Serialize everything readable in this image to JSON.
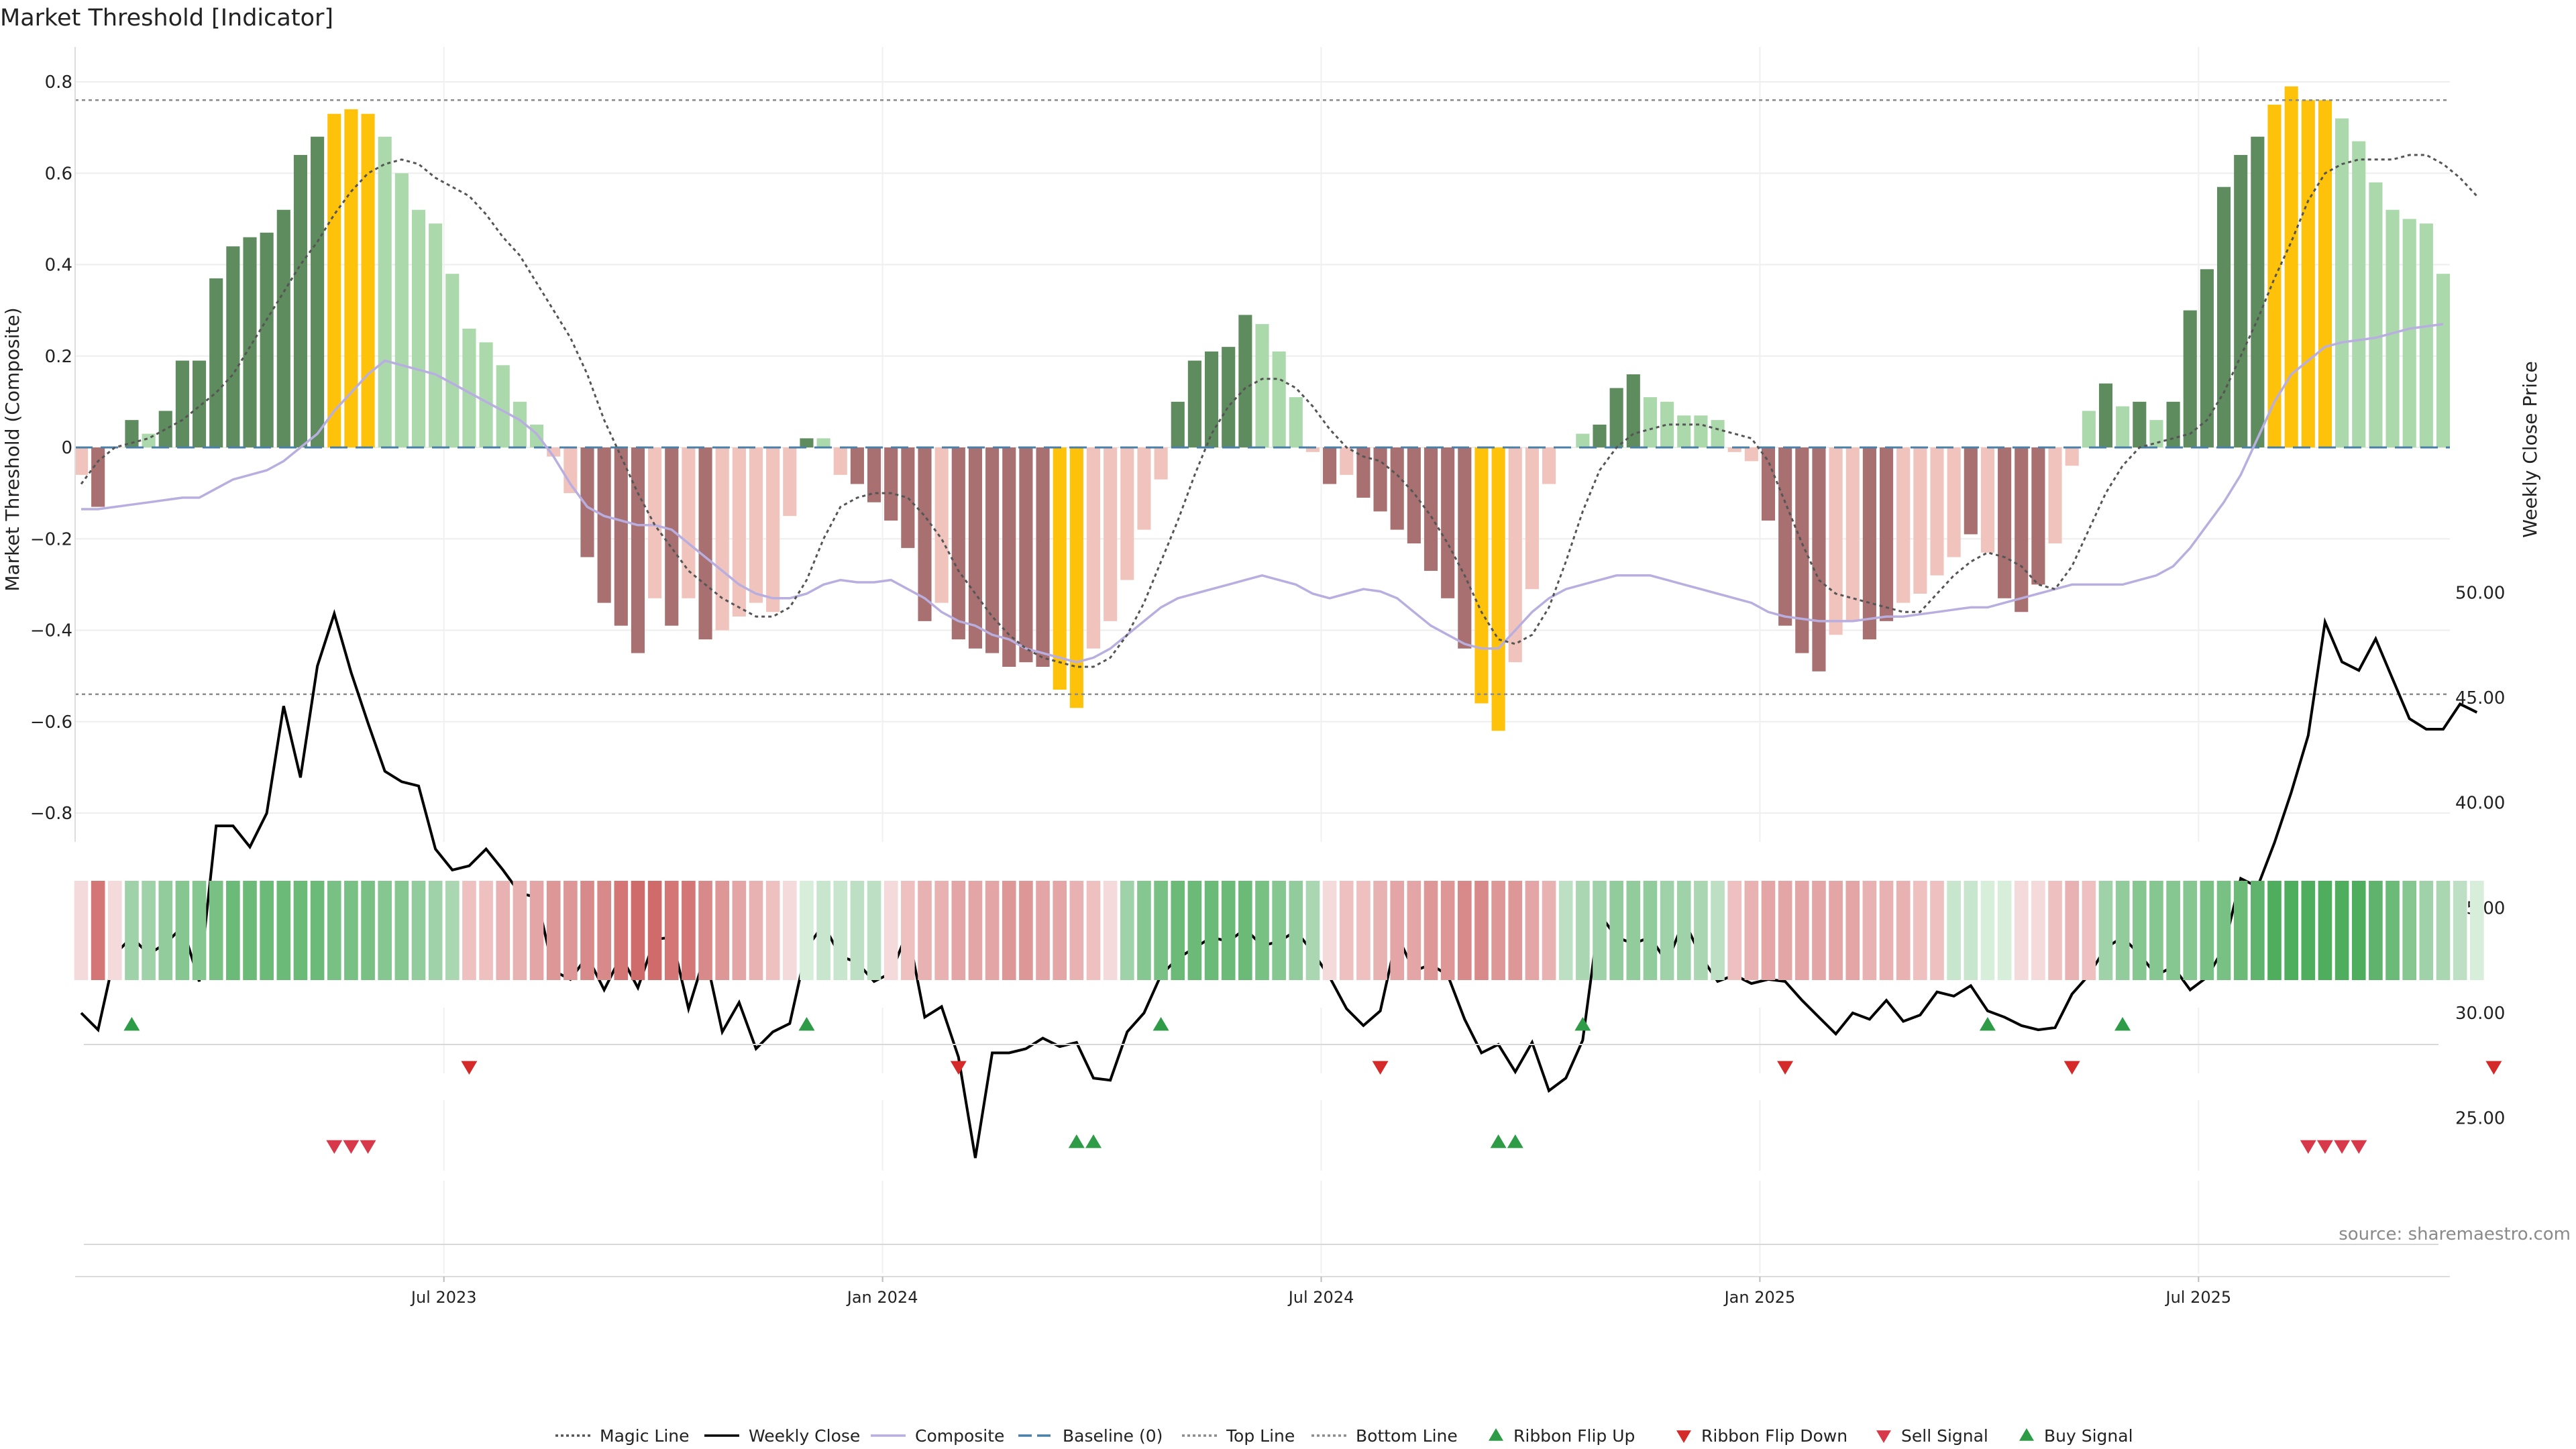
{
  "chart_data": {
    "type": "bar+line",
    "title": "Market Threshold [Indicator]",
    "ylabel": "Market Threshold (Composite)",
    "y2label": "Weekly Close Price",
    "source": "source: sharemaestro.com",
    "ylim": [
      -0.85,
      0.85
    ],
    "y2lim": [
      22.3,
      51.2
    ],
    "y_ticks": [
      0.8,
      0.6,
      0.4,
      0.2,
      0,
      -0.2,
      -0.4,
      -0.6,
      -0.8
    ],
    "y_tick_labels": [
      "0.8",
      "0.6",
      "0.4",
      "0.2",
      "0",
      "−0.2",
      "−0.4",
      "−0.6",
      "−0.8"
    ],
    "y2_ticks": [
      50,
      45,
      40,
      35,
      30,
      25
    ],
    "y2_tick_labels": [
      "50.00",
      "45.00",
      "40.00",
      "35.00",
      "30.00",
      "25.00"
    ],
    "x_ticks": [
      {
        "label": "Jul 2023",
        "week": 21.5
      },
      {
        "label": "Jan 2024",
        "week": 47.5
      },
      {
        "label": "Jul 2024",
        "week": 73.5
      },
      {
        "label": "Jan 2025",
        "week": 99.5
      },
      {
        "label": "Jul 2025",
        "week": 125.5
      }
    ],
    "top_line": 0.76,
    "bottom_line": -0.54,
    "composite_values": [
      -0.06,
      -0.13,
      0,
      0.06,
      0.03,
      0.08,
      0.19,
      0.19,
      0.37,
      0.44,
      0.46,
      0.47,
      0.52,
      0.64,
      0.68,
      0.73,
      0.74,
      0.73,
      0.68,
      0.6,
      0.52,
      0.49,
      0.38,
      0.26,
      0.23,
      0.18,
      0.1,
      0.05,
      -0.02,
      -0.1,
      -0.24,
      -0.34,
      -0.39,
      -0.45,
      -0.33,
      -0.39,
      -0.33,
      -0.42,
      -0.4,
      -0.37,
      -0.34,
      -0.36,
      -0.15,
      0.02,
      0.02,
      -0.06,
      -0.08,
      -0.12,
      -0.16,
      -0.22,
      -0.38,
      -0.34,
      -0.42,
      -0.44,
      -0.45,
      -0.48,
      -0.47,
      -0.48,
      -0.53,
      -0.57,
      -0.44,
      -0.38,
      -0.29,
      -0.18,
      -0.07,
      0.1,
      0.19,
      0.21,
      0.22,
      0.29,
      0.27,
      0.21,
      0.11,
      -0.01,
      -0.08,
      -0.06,
      -0.11,
      -0.14,
      -0.18,
      -0.21,
      -0.27,
      -0.33,
      -0.44,
      -0.56,
      -0.62,
      -0.47,
      -0.31,
      -0.08,
      0,
      0.03,
      0.05,
      0.13,
      0.16,
      0.11,
      0.1,
      0.07,
      0.07,
      0.06,
      -0.01,
      -0.03,
      -0.16,
      -0.39,
      -0.45,
      -0.49,
      -0.41,
      -0.38,
      -0.42,
      -0.38,
      -0.34,
      -0.32,
      -0.28,
      -0.24,
      -0.19,
      -0.23,
      -0.33,
      -0.36,
      -0.3,
      -0.21,
      -0.04,
      0.08,
      0.14,
      0.09,
      0.1,
      0.06,
      0.1,
      0.3,
      0.39,
      0.57,
      0.64,
      0.68,
      0.75,
      0.79,
      0.76,
      0.76,
      0.72,
      0.67,
      0.58,
      0.52,
      0.5,
      0.49,
      0.38
    ],
    "bar_colors": [
      "#f0c4bd",
      "#a87070",
      "#f0c4bd",
      "#5f8c5f",
      "#acd9ac",
      "#5f8c5f",
      "#5f8c5f",
      "#5f8c5f",
      "#5f8c5f",
      "#5f8c5f",
      "#5f8c5f",
      "#5f8c5f",
      "#5f8c5f",
      "#5f8c5f",
      "#5f8c5f",
      "#ffc20a",
      "#ffc20a",
      "#ffc20a",
      "#acd9ac",
      "#acd9ac",
      "#acd9ac",
      "#acd9ac",
      "#acd9ac",
      "#acd9ac",
      "#acd9ac",
      "#acd9ac",
      "#acd9ac",
      "#acd9ac",
      "#f0c4bd",
      "#f0c4bd",
      "#a87070",
      "#a87070",
      "#a87070",
      "#a87070",
      "#f0c4bd",
      "#a87070",
      "#f0c4bd",
      "#a87070",
      "#f0c4bd",
      "#f0c4bd",
      "#f0c4bd",
      "#f0c4bd",
      "#f0c4bd",
      "#5f8c5f",
      "#acd9ac",
      "#f0c4bd",
      "#a87070",
      "#a87070",
      "#a87070",
      "#a87070",
      "#a87070",
      "#f0c4bd",
      "#a87070",
      "#a87070",
      "#a87070",
      "#a87070",
      "#a87070",
      "#a87070",
      "#ffc20a",
      "#ffc20a",
      "#f0c4bd",
      "#f0c4bd",
      "#f0c4bd",
      "#f0c4bd",
      "#f0c4bd",
      "#5f8c5f",
      "#5f8c5f",
      "#5f8c5f",
      "#5f8c5f",
      "#5f8c5f",
      "#acd9ac",
      "#acd9ac",
      "#acd9ac",
      "#f0c4bd",
      "#a87070",
      "#f0c4bd",
      "#a87070",
      "#a87070",
      "#a87070",
      "#a87070",
      "#a87070",
      "#a87070",
      "#a87070",
      "#ffc20a",
      "#ffc20a",
      "#f0c4bd",
      "#f0c4bd",
      "#f0c4bd",
      "#f0c4bd",
      "#acd9ac",
      "#5f8c5f",
      "#5f8c5f",
      "#5f8c5f",
      "#acd9ac",
      "#acd9ac",
      "#acd9ac",
      "#acd9ac",
      "#acd9ac",
      "#f0c4bd",
      "#f0c4bd",
      "#a87070",
      "#a87070",
      "#a87070",
      "#a87070",
      "#f0c4bd",
      "#f0c4bd",
      "#a87070",
      "#a87070",
      "#f0c4bd",
      "#f0c4bd",
      "#f0c4bd",
      "#f0c4bd",
      "#a87070",
      "#f0c4bd",
      "#a87070",
      "#a87070",
      "#a87070",
      "#f0c4bd",
      "#f0c4bd",
      "#acd9ac",
      "#5f8c5f",
      "#acd9ac",
      "#5f8c5f",
      "#acd9ac",
      "#5f8c5f",
      "#5f8c5f",
      "#5f8c5f",
      "#5f8c5f",
      "#5f8c5f",
      "#5f8c5f",
      "#ffc20a",
      "#ffc20a",
      "#ffc20a",
      "#ffc20a",
      "#acd9ac",
      "#acd9ac",
      "#acd9ac",
      "#acd9ac",
      "#acd9ac",
      "#acd9ac",
      "#acd9ac"
    ],
    "weekly_close": [
      30.0,
      29.2,
      32.8,
      33.6,
      32.8,
      33.3,
      34.1,
      31.5,
      38.9,
      38.9,
      37.9,
      39.5,
      44.6,
      41.2,
      46.5,
      49.0,
      46.2,
      43.8,
      41.5,
      41.0,
      40.8,
      37.8,
      36.8,
      37.0,
      37.8,
      36.8,
      35.7,
      35.5,
      32.0,
      31.6,
      32.7,
      31.1,
      32.7,
      31.2,
      33.5,
      33.6,
      30.2,
      32.8,
      29.1,
      30.5,
      28.3,
      29.1,
      29.5,
      33.1,
      34.2,
      32.7,
      32.4,
      31.5,
      31.9,
      33.9,
      29.8,
      30.3,
      27.9,
      23.1,
      28.1,
      28.1,
      28.3,
      28.8,
      28.4,
      28.6,
      26.9,
      26.8,
      29.1,
      30.0,
      31.8,
      32.6,
      33.1,
      33.6,
      33.4,
      34.0,
      33.2,
      33.4,
      33.9,
      32.9,
      31.7,
      30.2,
      29.4,
      30.1,
      33.7,
      32.0,
      32.3,
      31.8,
      29.7,
      28.1,
      28.5,
      27.2,
      28.6,
      26.3,
      26.9,
      28.7,
      34.7,
      33.6,
      33.3,
      33.6,
      32.4,
      34.4,
      32.7,
      31.5,
      31.8,
      31.4,
      31.6,
      31.5,
      30.6,
      29.8,
      29.0,
      30.0,
      29.7,
      30.6,
      29.6,
      29.9,
      31.0,
      30.8,
      31.3,
      30.1,
      29.8,
      29.4,
      29.2,
      29.3,
      30.9,
      31.8,
      33.1,
      33.6,
      32.8,
      31.8,
      32.2,
      31.1,
      31.7,
      33.1,
      36.4,
      36.0,
      38.1,
      40.5,
      43.2,
      48.6,
      46.7,
      46.3,
      47.8,
      45.9,
      44.0,
      43.5,
      43.5,
      44.7,
      44.3
    ],
    "magic_line": [
      -0.08,
      -0.03,
      0.0,
      0.01,
      0.02,
      0.04,
      0.06,
      0.09,
      0.12,
      0.16,
      0.22,
      0.28,
      0.34,
      0.4,
      0.45,
      0.51,
      0.56,
      0.6,
      0.62,
      0.63,
      0.62,
      0.59,
      0.57,
      0.55,
      0.51,
      0.46,
      0.42,
      0.36,
      0.3,
      0.24,
      0.16,
      0.06,
      -0.02,
      -0.1,
      -0.17,
      -0.22,
      -0.27,
      -0.3,
      -0.33,
      -0.35,
      -0.37,
      -0.37,
      -0.35,
      -0.29,
      -0.2,
      -0.13,
      -0.11,
      -0.1,
      -0.1,
      -0.11,
      -0.15,
      -0.2,
      -0.27,
      -0.32,
      -0.37,
      -0.41,
      -0.44,
      -0.46,
      -0.47,
      -0.48,
      -0.48,
      -0.46,
      -0.41,
      -0.34,
      -0.25,
      -0.16,
      -0.06,
      0.03,
      0.09,
      0.13,
      0.15,
      0.15,
      0.13,
      0.09,
      0.04,
      0.0,
      -0.02,
      -0.03,
      -0.06,
      -0.1,
      -0.15,
      -0.21,
      -0.28,
      -0.36,
      -0.42,
      -0.43,
      -0.41,
      -0.35,
      -0.25,
      -0.14,
      -0.05,
      0.0,
      0.03,
      0.04,
      0.05,
      0.05,
      0.05,
      0.04,
      0.03,
      0.02,
      -0.03,
      -0.12,
      -0.21,
      -0.29,
      -0.32,
      -0.33,
      -0.34,
      -0.35,
      -0.36,
      -0.36,
      -0.32,
      -0.28,
      -0.25,
      -0.23,
      -0.24,
      -0.26,
      -0.3,
      -0.31,
      -0.26,
      -0.18,
      -0.1,
      -0.04,
      0.0,
      0.01,
      0.02,
      0.03,
      0.06,
      0.12,
      0.2,
      0.28,
      0.37,
      0.45,
      0.54,
      0.6,
      0.62,
      0.63,
      0.63,
      0.63,
      0.64,
      0.64,
      0.62,
      0.59,
      0.55
    ],
    "composite_line": [
      -0.135,
      -0.135,
      -0.13,
      -0.125,
      -0.12,
      -0.115,
      -0.11,
      -0.11,
      -0.09,
      -0.07,
      -0.06,
      -0.05,
      -0.03,
      0.0,
      0.03,
      0.08,
      0.12,
      0.16,
      0.19,
      0.18,
      0.17,
      0.16,
      0.14,
      0.12,
      0.1,
      0.08,
      0.06,
      0.03,
      -0.02,
      -0.08,
      -0.13,
      -0.15,
      -0.16,
      -0.17,
      -0.17,
      -0.18,
      -0.21,
      -0.24,
      -0.27,
      -0.3,
      -0.32,
      -0.33,
      -0.33,
      -0.32,
      -0.3,
      -0.29,
      -0.295,
      -0.295,
      -0.29,
      -0.31,
      -0.33,
      -0.36,
      -0.38,
      -0.39,
      -0.41,
      -0.42,
      -0.44,
      -0.45,
      -0.46,
      -0.47,
      -0.46,
      -0.44,
      -0.41,
      -0.38,
      -0.35,
      -0.33,
      -0.32,
      -0.31,
      -0.3,
      -0.29,
      -0.28,
      -0.29,
      -0.3,
      -0.32,
      -0.33,
      -0.32,
      -0.31,
      -0.315,
      -0.33,
      -0.36,
      -0.39,
      -0.41,
      -0.43,
      -0.44,
      -0.44,
      -0.4,
      -0.36,
      -0.33,
      -0.31,
      -0.3,
      -0.29,
      -0.28,
      -0.28,
      -0.28,
      -0.29,
      -0.3,
      -0.31,
      -0.32,
      -0.33,
      -0.34,
      -0.36,
      -0.37,
      -0.375,
      -0.38,
      -0.38,
      -0.38,
      -0.375,
      -0.37,
      -0.37,
      -0.365,
      -0.36,
      -0.355,
      -0.35,
      -0.35,
      -0.34,
      -0.33,
      -0.32,
      -0.31,
      -0.3,
      -0.3,
      -0.3,
      -0.3,
      -0.29,
      -0.28,
      -0.26,
      -0.22,
      -0.17,
      -0.12,
      -0.06,
      0.02,
      0.1,
      0.16,
      0.19,
      0.22,
      0.23,
      0.235,
      0.24,
      0.25,
      0.26,
      0.265,
      0.27
    ],
    "heat_colors": [
      "#f4dada",
      "#d47676",
      "#f4dada",
      "#9fd2a8",
      "#9fd2a8",
      "#92cc9c",
      "#86c690",
      "#86c690",
      "#79c084",
      "#6cba78",
      "#6cba78",
      "#6cba78",
      "#6cba78",
      "#6cba78",
      "#6cba78",
      "#79c084",
      "#79c084",
      "#79c084",
      "#86c690",
      "#86c690",
      "#92cc9c",
      "#9fd2a8",
      "#aad7b2",
      "#eec0c0",
      "#eec0c0",
      "#e8b2b2",
      "#e8b2b2",
      "#e3a5a5",
      "#dd9797",
      "#dd9797",
      "#d88a8a",
      "#d88a8a",
      "#d47676",
      "#cf6b6b",
      "#cf6b6b",
      "#d47676",
      "#d47676",
      "#d88a8a",
      "#dd9797",
      "#e3a5a5",
      "#e8b2b2",
      "#eec0c0",
      "#f4dada",
      "#d6eeda",
      "#c8e6cd",
      "#c8e6cd",
      "#bde0c4",
      "#bde0c4",
      "#f4dada",
      "#eec0c0",
      "#e8b2b2",
      "#e8b2b2",
      "#e3a5a5",
      "#e3a5a5",
      "#e3a5a5",
      "#dd9797",
      "#dd9797",
      "#e3a5a5",
      "#e3a5a5",
      "#e8b2b2",
      "#eec0c0",
      "#f4dada",
      "#9fd2a8",
      "#86c690",
      "#79c084",
      "#6cba78",
      "#6cba78",
      "#6cba78",
      "#6cba78",
      "#6cba78",
      "#79c084",
      "#86c690",
      "#92cc9c",
      "#aad7b2",
      "#f4dada",
      "#eec0c0",
      "#eec0c0",
      "#e8b2b2",
      "#e3a5a5",
      "#e3a5a5",
      "#dd9797",
      "#dd9797",
      "#d88a8a",
      "#d88a8a",
      "#dd9797",
      "#dd9797",
      "#e3a5a5",
      "#e8b2b2",
      "#bde0c4",
      "#aad7b2",
      "#9fd2a8",
      "#92cc9c",
      "#92cc9c",
      "#92cc9c",
      "#9fd2a8",
      "#9fd2a8",
      "#aad7b2",
      "#bde0c4",
      "#eec0c0",
      "#e8b2b2",
      "#e3a5a5",
      "#e3a5a5",
      "#e3a5a5",
      "#e3a5a5",
      "#e3a5a5",
      "#e3a5a5",
      "#e8b2b2",
      "#e8b2b2",
      "#e8b2b2",
      "#eec0c0",
      "#eec0c0",
      "#c8e6cd",
      "#c8e6cd",
      "#d6eeda",
      "#d6eeda",
      "#f4dada",
      "#f4dada",
      "#eec0c0",
      "#e8b2b2",
      "#eec0c0",
      "#9fd2a8",
      "#92cc9c",
      "#86c690",
      "#86c690",
      "#86c690",
      "#86c690",
      "#79c084",
      "#79c084",
      "#6cba78",
      "#5fb36c",
      "#4fad5e",
      "#4fad5e",
      "#4fad5e",
      "#4fad5e",
      "#4fad5e",
      "#4fad5e",
      "#5fb36c",
      "#6cba78",
      "#86c690",
      "#9fd2a8",
      "#aad7b2",
      "#bde0c4",
      "#d6eeda"
    ],
    "ribbon_flip_up_weeks": [
      3,
      43,
      64,
      89,
      113,
      121
    ],
    "ribbon_flip_down_weeks": [
      23,
      52,
      77,
      101,
      118,
      143
    ],
    "sell_signal_weeks": [
      15,
      16,
      17,
      132,
      133,
      134,
      135
    ],
    "buy_signal_weeks": [
      59,
      60,
      84,
      85
    ],
    "colors": {
      "strong_bull": "#5f8c5f",
      "weak_bull": "#acd9ac",
      "strong_bear": "#a87070",
      "weak_bear": "#f0c4bd",
      "extreme": "#ffc20a",
      "magic_line": "#555555",
      "weekly_close": "#000000",
      "composite": "#b9aee0",
      "baseline": "#4a80a8",
      "threshold_lines": "#8a8a8a",
      "flip_up": "#2e9b47",
      "flip_down": "#d42a2a",
      "sell": "#d8394a",
      "buy": "#2e9b47"
    },
    "legend": [
      {
        "label": "Magic Line",
        "kind": "dotted",
        "color": "#555555"
      },
      {
        "label": "Weekly Close",
        "kind": "solid",
        "color": "#000000"
      },
      {
        "label": "Composite",
        "kind": "solid",
        "color": "#b9aee0"
      },
      {
        "label": "Baseline (0)",
        "kind": "dashed",
        "color": "#4a80a8"
      },
      {
        "label": "Top Line",
        "kind": "dotted",
        "color": "#8a8a8a"
      },
      {
        "label": "Bottom Line",
        "kind": "dotted",
        "color": "#8a8a8a"
      },
      {
        "label": "Ribbon Flip Up",
        "kind": "tri-up",
        "color": "#2e9b47"
      },
      {
        "label": "Ribbon Flip Down",
        "kind": "tri-down",
        "color": "#d42a2a"
      },
      {
        "label": "Sell Signal",
        "kind": "tri-down",
        "color": "#d8394a"
      },
      {
        "label": "Buy Signal",
        "kind": "tri-up",
        "color": "#2e9b47"
      }
    ],
    "legend_position": "bottom-center",
    "grid": true
  }
}
